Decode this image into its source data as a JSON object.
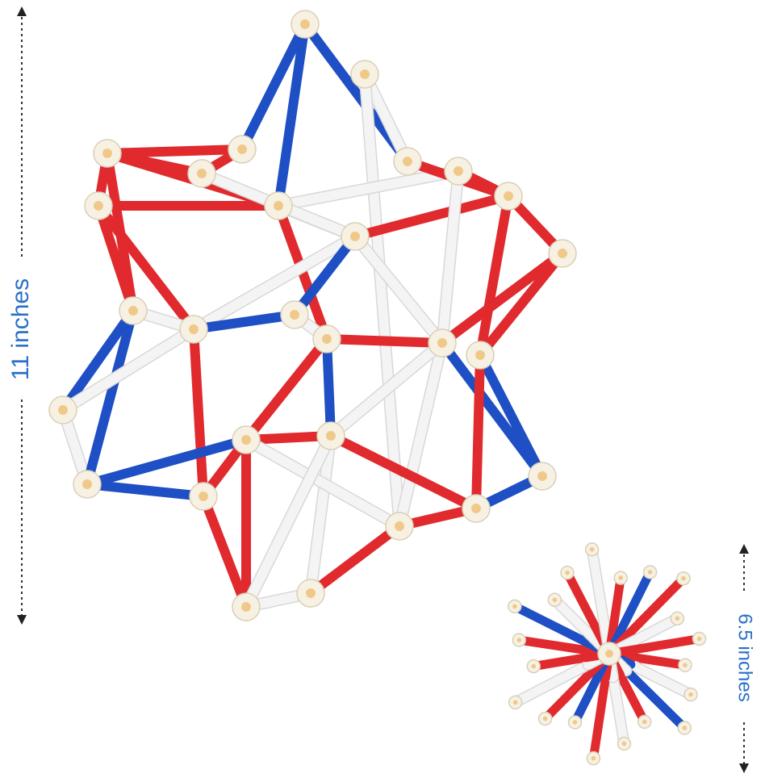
{
  "labels": {
    "large": "11 inches",
    "small": "6.5 inches"
  }
}
